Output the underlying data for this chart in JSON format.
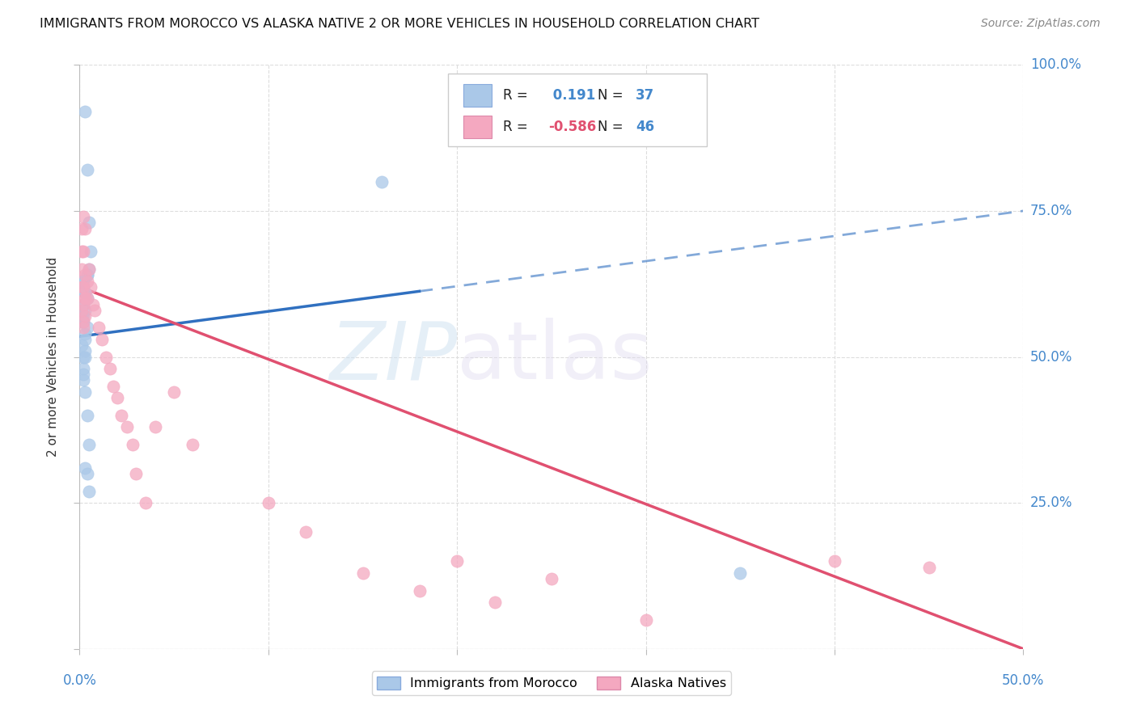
{
  "title": "IMMIGRANTS FROM MOROCCO VS ALASKA NATIVE 2 OR MORE VEHICLES IN HOUSEHOLD CORRELATION CHART",
  "source": "Source: ZipAtlas.com",
  "ylabel": "2 or more Vehicles in Household",
  "xmin": 0.0,
  "xmax": 0.5,
  "ymin": 0.0,
  "ymax": 1.0,
  "blue_R": 0.191,
  "blue_N": 37,
  "pink_R": -0.586,
  "pink_N": 46,
  "blue_color": "#aac8e8",
  "pink_color": "#f4a8c0",
  "blue_line_color": "#3070c0",
  "pink_line_color": "#e05070",
  "legend_label_blue": "Immigrants from Morocco",
  "legend_label_pink": "Alaska Natives",
  "blue_dots_x": [
    0.001,
    0.002,
    0.003,
    0.004,
    0.005,
    0.006,
    0.002,
    0.003,
    0.004,
    0.002,
    0.003,
    0.001,
    0.004,
    0.002,
    0.003,
    0.001,
    0.002,
    0.003,
    0.005,
    0.004,
    0.003,
    0.002,
    0.003,
    0.004,
    0.002,
    0.003,
    0.002,
    0.003,
    0.004,
    0.005,
    0.003,
    0.004,
    0.005,
    0.16,
    0.35,
    0.001,
    0.002
  ],
  "blue_dots_y": [
    0.56,
    0.57,
    0.92,
    0.82,
    0.73,
    0.68,
    0.63,
    0.61,
    0.64,
    0.59,
    0.61,
    0.63,
    0.6,
    0.62,
    0.58,
    0.57,
    0.56,
    0.54,
    0.65,
    0.64,
    0.51,
    0.5,
    0.53,
    0.55,
    0.48,
    0.5,
    0.46,
    0.44,
    0.4,
    0.35,
    0.31,
    0.3,
    0.27,
    0.8,
    0.13,
    0.52,
    0.47
  ],
  "pink_dots_x": [
    0.001,
    0.002,
    0.003,
    0.002,
    0.001,
    0.003,
    0.004,
    0.002,
    0.001,
    0.003,
    0.002,
    0.001,
    0.003,
    0.004,
    0.002,
    0.001,
    0.002,
    0.003,
    0.005,
    0.006,
    0.007,
    0.008,
    0.01,
    0.012,
    0.014,
    0.016,
    0.018,
    0.02,
    0.022,
    0.025,
    0.028,
    0.03,
    0.035,
    0.04,
    0.05,
    0.06,
    0.1,
    0.12,
    0.15,
    0.18,
    0.2,
    0.22,
    0.25,
    0.3,
    0.4,
    0.45
  ],
  "pink_dots_y": [
    0.68,
    0.74,
    0.72,
    0.68,
    0.65,
    0.64,
    0.63,
    0.62,
    0.72,
    0.6,
    0.59,
    0.62,
    0.57,
    0.6,
    0.56,
    0.58,
    0.55,
    0.6,
    0.65,
    0.62,
    0.59,
    0.58,
    0.55,
    0.53,
    0.5,
    0.48,
    0.45,
    0.43,
    0.4,
    0.38,
    0.35,
    0.3,
    0.25,
    0.38,
    0.44,
    0.35,
    0.25,
    0.2,
    0.13,
    0.1,
    0.15,
    0.08,
    0.12,
    0.05,
    0.15,
    0.14
  ],
  "blue_line_x0": 0.0,
  "blue_line_x1": 0.5,
  "blue_line_y0": 0.535,
  "blue_line_y1": 0.75,
  "pink_line_x0": 0.0,
  "pink_line_x1": 0.5,
  "pink_line_y0": 0.62,
  "pink_line_y1": 0.0
}
